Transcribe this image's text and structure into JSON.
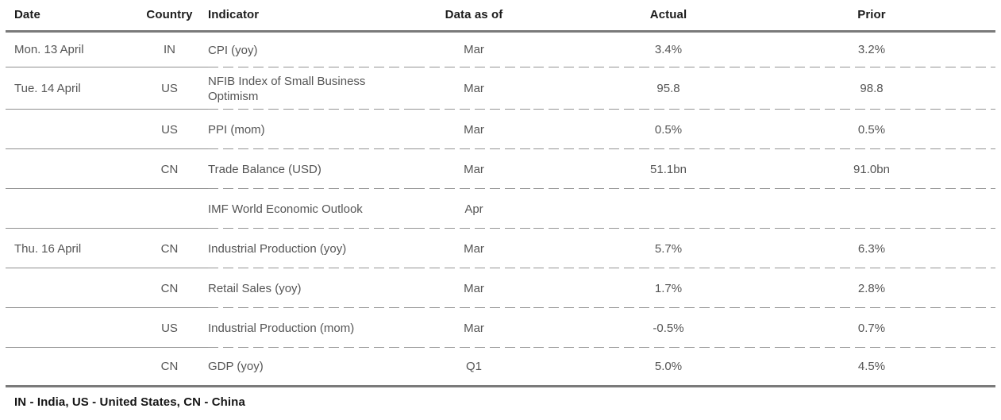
{
  "table": {
    "columns": [
      "Date",
      "Country",
      "Indicator",
      "Data as of",
      "Actual",
      "Prior"
    ],
    "rows": [
      {
        "date": "Mon. 13 April",
        "country": "IN",
        "indicator": "CPI (yoy)",
        "data_as_of": "Mar",
        "actual": "3.4%",
        "prior": "3.2%"
      },
      {
        "date": "Tue. 14 April",
        "country": "US",
        "indicator": "NFIB Index of Small Business Optimism",
        "data_as_of": "Mar",
        "actual": "95.8",
        "prior": "98.8"
      },
      {
        "date": "",
        "country": "US",
        "indicator": "PPI (mom)",
        "data_as_of": "Mar",
        "actual": "0.5%",
        "prior": "0.5%"
      },
      {
        "date": "",
        "country": "CN",
        "indicator": "Trade Balance (USD)",
        "data_as_of": "Mar",
        "actual": "51.1bn",
        "prior": "91.0bn"
      },
      {
        "date": "",
        "country": "",
        "indicator": "IMF World Economic Outlook",
        "data_as_of": "Apr",
        "actual": "",
        "prior": ""
      },
      {
        "date": "Thu. 16 April",
        "country": "CN",
        "indicator": "Industrial Production (yoy)",
        "data_as_of": "Mar",
        "actual": "5.7%",
        "prior": "6.3%"
      },
      {
        "date": "",
        "country": "CN",
        "indicator": "Retail Sales (yoy)",
        "data_as_of": "Mar",
        "actual": "1.7%",
        "prior": "2.8%"
      },
      {
        "date": "",
        "country": "US",
        "indicator": "Industrial Production (mom)",
        "data_as_of": "Mar",
        "actual": "-0.5%",
        "prior": "0.7%"
      },
      {
        "date": "",
        "country": "CN",
        "indicator": "GDP (yoy)",
        "data_as_of": "Q1",
        "actual": "5.0%",
        "prior": "4.5%"
      }
    ]
  },
  "footnote": "IN - India, US - United States, CN - China",
  "chart_data": {
    "type": "table",
    "title": "",
    "columns": [
      "Date",
      "Country",
      "Indicator",
      "Data as of",
      "Actual",
      "Prior"
    ],
    "rows": [
      [
        "Mon. 13 April",
        "IN",
        "CPI (yoy)",
        "Mar",
        "3.4%",
        "3.2%"
      ],
      [
        "Tue. 14 April",
        "US",
        "NFIB Index of Small Business Optimism",
        "Mar",
        "95.8",
        "98.8"
      ],
      [
        "",
        "US",
        "PPI (mom)",
        "Mar",
        "0.5%",
        "0.5%"
      ],
      [
        "",
        "CN",
        "Trade Balance (USD)",
        "Mar",
        "51.1bn",
        "91.0bn"
      ],
      [
        "",
        "",
        "IMF World Economic Outlook",
        "Apr",
        "",
        ""
      ],
      [
        "Thu. 16 April",
        "CN",
        "Industrial Production (yoy)",
        "Mar",
        "5.7%",
        "6.3%"
      ],
      [
        "",
        "CN",
        "Retail Sales (yoy)",
        "Mar",
        "1.7%",
        "2.8%"
      ],
      [
        "",
        "US",
        "Industrial Production (mom)",
        "Mar",
        "-0.5%",
        "0.7%"
      ],
      [
        "",
        "CN",
        "GDP (yoy)",
        "Q1",
        "5.0%",
        "4.5%"
      ]
    ]
  },
  "colors": {
    "background": "#ffffff",
    "header_text": "#1c1c1c",
    "body_text": "#555555",
    "rule_thick": "#7a7a7a",
    "rule_solid": "#8f8f8f",
    "rule_dashed": "#949494"
  }
}
